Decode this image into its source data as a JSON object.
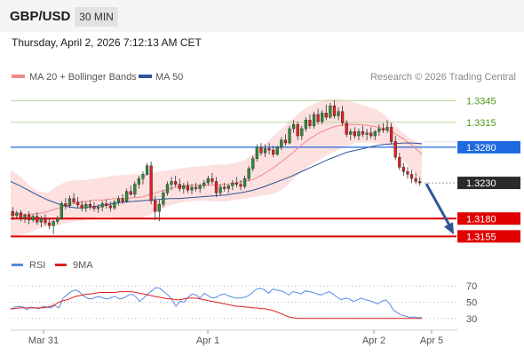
{
  "header": {
    "symbol": "GBP/USD",
    "interval": "30 MIN"
  },
  "datetime": "Thursday, April 2, 2026 7:12:13 AM CET",
  "legend": {
    "ma20": "MA 20 + Bollinger Bands",
    "ma50": "MA 50",
    "copyright": "Research © 2026 Trading Central"
  },
  "rsi_legend": {
    "rsi": "RSI",
    "ma9": "9MA"
  },
  "colors": {
    "ma20": "#f08a8a",
    "ma50": "#2f5597",
    "band": "#fde0e0",
    "bull": "#2e8b3a",
    "bear": "#e02020",
    "pivot": "#1f6ae0",
    "support": "#e00000",
    "target": "#7fbf3f",
    "arrow": "#2f5597",
    "rsi": "#5a8ae0",
    "rsi_ma": "#e02020"
  },
  "chart_data": {
    "type": "candlestick",
    "x_ticks": [
      "Mar 31",
      "Apr 1",
      "Apr 2",
      "Apr 5"
    ],
    "price_ylim": [
      1.3138,
      1.3362
    ],
    "levels": [
      {
        "label": "1.3345",
        "value": 1.3345,
        "kind": "target"
      },
      {
        "label": "1.3315",
        "value": 1.3315,
        "kind": "target"
      },
      {
        "label": "1.3280",
        "value": 1.328,
        "kind": "pivot"
      },
      {
        "label": "1.3230",
        "value": 1.323,
        "kind": "last"
      },
      {
        "label": "1.3180",
        "value": 1.318,
        "kind": "support"
      },
      {
        "label": "1.3155",
        "value": 1.3155,
        "kind": "support"
      }
    ],
    "last_price": 1.323,
    "arrow": {
      "from": 1.323,
      "to": 1.3155
    },
    "candles": [
      [
        1.319,
        1.3196,
        1.3178,
        1.3184
      ],
      [
        1.3184,
        1.3191,
        1.318,
        1.3188
      ],
      [
        1.3188,
        1.3192,
        1.3176,
        1.3181
      ],
      [
        1.3181,
        1.3187,
        1.3174,
        1.3185
      ],
      [
        1.3185,
        1.319,
        1.3172,
        1.3178
      ],
      [
        1.3178,
        1.3186,
        1.3175,
        1.3183
      ],
      [
        1.3183,
        1.3189,
        1.3171,
        1.3175
      ],
      [
        1.3175,
        1.3184,
        1.3168,
        1.318
      ],
      [
        1.318,
        1.3186,
        1.317,
        1.3174
      ],
      [
        1.3174,
        1.3181,
        1.3165,
        1.317
      ],
      [
        1.317,
        1.3178,
        1.3158,
        1.3176
      ],
      [
        1.3176,
        1.3184,
        1.3172,
        1.318
      ],
      [
        1.318,
        1.3204,
        1.3178,
        1.3201
      ],
      [
        1.3201,
        1.3209,
        1.3193,
        1.3198
      ],
      [
        1.3198,
        1.3212,
        1.3195,
        1.3208
      ],
      [
        1.3208,
        1.3216,
        1.32,
        1.3203
      ],
      [
        1.3203,
        1.321,
        1.3195,
        1.3199
      ],
      [
        1.3199,
        1.3205,
        1.319,
        1.3195
      ],
      [
        1.3195,
        1.3204,
        1.3189,
        1.32
      ],
      [
        1.32,
        1.3206,
        1.3192,
        1.3197
      ],
      [
        1.3197,
        1.3203,
        1.319,
        1.3194
      ],
      [
        1.3194,
        1.32,
        1.3188,
        1.3196
      ],
      [
        1.3196,
        1.3205,
        1.319,
        1.3201
      ],
      [
        1.3201,
        1.3207,
        1.3194,
        1.3198
      ],
      [
        1.3198,
        1.3204,
        1.319,
        1.3195
      ],
      [
        1.3195,
        1.3206,
        1.3192,
        1.3203
      ],
      [
        1.3203,
        1.3212,
        1.3198,
        1.3208
      ],
      [
        1.3208,
        1.3214,
        1.32,
        1.3204
      ],
      [
        1.3204,
        1.3222,
        1.3202,
        1.3218
      ],
      [
        1.3218,
        1.3226,
        1.3212,
        1.3214
      ],
      [
        1.3214,
        1.3232,
        1.321,
        1.3228
      ],
      [
        1.3228,
        1.324,
        1.3222,
        1.3236
      ],
      [
        1.3236,
        1.3246,
        1.3228,
        1.3242
      ],
      [
        1.3242,
        1.3258,
        1.324,
        1.3254
      ],
      [
        1.3254,
        1.326,
        1.32,
        1.3205
      ],
      [
        1.3205,
        1.3212,
        1.3178,
        1.319
      ],
      [
        1.319,
        1.3206,
        1.3176,
        1.32
      ],
      [
        1.32,
        1.322,
        1.3196,
        1.3216
      ],
      [
        1.3216,
        1.3232,
        1.3212,
        1.3228
      ],
      [
        1.3228,
        1.3238,
        1.322,
        1.3232
      ],
      [
        1.3232,
        1.324,
        1.3224,
        1.3228
      ],
      [
        1.3228,
        1.3236,
        1.3218,
        1.3222
      ],
      [
        1.3222,
        1.323,
        1.3215,
        1.3226
      ],
      [
        1.3226,
        1.3232,
        1.3216,
        1.322
      ],
      [
        1.322,
        1.3228,
        1.3214,
        1.3224
      ],
      [
        1.3224,
        1.323,
        1.3218,
        1.3222
      ],
      [
        1.3222,
        1.3229,
        1.3216,
        1.3226
      ],
      [
        1.3226,
        1.3234,
        1.3222,
        1.323
      ],
      [
        1.323,
        1.324,
        1.3226,
        1.3236
      ],
      [
        1.3236,
        1.3244,
        1.3228,
        1.3232
      ],
      [
        1.3232,
        1.3238,
        1.321,
        1.3216
      ],
      [
        1.3216,
        1.3228,
        1.3212,
        1.3224
      ],
      [
        1.3224,
        1.323,
        1.3218,
        1.3222
      ],
      [
        1.3222,
        1.3228,
        1.3216,
        1.3226
      ],
      [
        1.3226,
        1.3234,
        1.322,
        1.323
      ],
      [
        1.323,
        1.3238,
        1.3224,
        1.3228
      ],
      [
        1.3228,
        1.3234,
        1.322,
        1.3225
      ],
      [
        1.3225,
        1.324,
        1.3222,
        1.3236
      ],
      [
        1.3236,
        1.3254,
        1.3232,
        1.325
      ],
      [
        1.325,
        1.3268,
        1.3246,
        1.3264
      ],
      [
        1.3264,
        1.3284,
        1.326,
        1.328
      ],
      [
        1.328,
        1.3286,
        1.3268,
        1.3272
      ],
      [
        1.3272,
        1.3284,
        1.3266,
        1.3278
      ],
      [
        1.3278,
        1.3286,
        1.327,
        1.3276
      ],
      [
        1.3276,
        1.3282,
        1.3266,
        1.327
      ],
      [
        1.327,
        1.3282,
        1.3268,
        1.328
      ],
      [
        1.328,
        1.3294,
        1.3276,
        1.329
      ],
      [
        1.329,
        1.3298,
        1.3282,
        1.3286
      ],
      [
        1.3286,
        1.331,
        1.3284,
        1.3306
      ],
      [
        1.3306,
        1.3318,
        1.33,
        1.3312
      ],
      [
        1.3312,
        1.3316,
        1.329,
        1.3296
      ],
      [
        1.3296,
        1.331,
        1.329,
        1.3306
      ],
      [
        1.3306,
        1.3322,
        1.3302,
        1.3318
      ],
      [
        1.3318,
        1.3326,
        1.3306,
        1.331
      ],
      [
        1.331,
        1.333,
        1.3306,
        1.3326
      ],
      [
        1.3326,
        1.3334,
        1.3312,
        1.3316
      ],
      [
        1.3316,
        1.3332,
        1.3312,
        1.3328
      ],
      [
        1.3328,
        1.334,
        1.3318,
        1.3322
      ],
      [
        1.3322,
        1.3342,
        1.332,
        1.3338
      ],
      [
        1.3338,
        1.3346,
        1.332,
        1.3324
      ],
      [
        1.3324,
        1.3336,
        1.3318,
        1.333
      ],
      [
        1.333,
        1.3338,
        1.331,
        1.3314
      ],
      [
        1.3314,
        1.3318,
        1.3294,
        1.3298
      ],
      [
        1.3298,
        1.3306,
        1.329,
        1.3302
      ],
      [
        1.3302,
        1.3308,
        1.3292,
        1.3296
      ],
      [
        1.3296,
        1.3306,
        1.329,
        1.3302
      ],
      [
        1.3302,
        1.331,
        1.3294,
        1.3298
      ],
      [
        1.3298,
        1.3306,
        1.329,
        1.33
      ],
      [
        1.33,
        1.3308,
        1.3292,
        1.3296
      ],
      [
        1.3296,
        1.3304,
        1.329,
        1.3302
      ],
      [
        1.3302,
        1.3312,
        1.3296,
        1.3306
      ],
      [
        1.3306,
        1.3314,
        1.33,
        1.3304
      ],
      [
        1.3304,
        1.3318,
        1.33,
        1.3308
      ],
      [
        1.3308,
        1.3314,
        1.3284,
        1.3288
      ],
      [
        1.3288,
        1.3296,
        1.3262,
        1.3266
      ],
      [
        1.3266,
        1.3272,
        1.3248,
        1.3252
      ],
      [
        1.3252,
        1.3258,
        1.324,
        1.3246
      ],
      [
        1.3246,
        1.3252,
        1.3236,
        1.3242
      ],
      [
        1.3242,
        1.3248,
        1.323,
        1.3236
      ],
      [
        1.3236,
        1.3244,
        1.3228,
        1.3232
      ],
      [
        1.3232,
        1.3238,
        1.3226,
        1.323
      ]
    ],
    "ma20": [
      1.3186,
      1.3186,
      1.3186,
      1.3187,
      1.319,
      1.3194,
      1.3198,
      1.3202,
      1.3204,
      1.3206,
      1.3206,
      1.3208,
      1.3208,
      1.3209,
      1.321,
      1.3214,
      1.3218,
      1.3222,
      1.3225,
      1.3227,
      1.3227,
      1.3227,
      1.3227,
      1.3228,
      1.323,
      1.3232,
      1.3235,
      1.3242,
      1.325,
      1.326,
      1.327,
      1.3282,
      1.3292,
      1.33,
      1.3306,
      1.331,
      1.3312,
      1.3312,
      1.3311,
      1.3309,
      1.3306,
      1.33,
      1.3292,
      1.3282,
      1.327
    ],
    "ma50": [
      1.3232,
      1.3226,
      1.3219,
      1.3212,
      1.3206,
      1.3201,
      1.3197,
      1.3195,
      1.3195,
      1.3197,
      1.3199,
      1.3201,
      1.3203,
      1.3204,
      1.3205,
      1.3206,
      1.3207,
      1.3208,
      1.3208,
      1.3209,
      1.321,
      1.3211,
      1.3212,
      1.3213,
      1.3215,
      1.3217,
      1.322,
      1.3224,
      1.3229,
      1.3234,
      1.3239,
      1.3245,
      1.3251,
      1.3257,
      1.3263,
      1.3268,
      1.3273,
      1.3276,
      1.3279,
      1.3282,
      1.3284,
      1.3285,
      1.3286,
      1.3286,
      1.3285
    ],
    "band_upper": [
      1.3248,
      1.324,
      1.3226,
      1.3218,
      1.3216,
      1.3226,
      1.3232,
      1.3234,
      1.3234,
      1.3236,
      1.3238,
      1.324,
      1.3241,
      1.3242,
      1.3242,
      1.3244,
      1.3246,
      1.3248,
      1.325,
      1.3252,
      1.3253,
      1.3254,
      1.3256,
      1.3256,
      1.3258,
      1.3262,
      1.327,
      1.3282,
      1.3294,
      1.3306,
      1.3318,
      1.333,
      1.3338,
      1.3344,
      1.3348,
      1.3348,
      1.3346,
      1.3342,
      1.3338,
      1.3334,
      1.3326,
      1.3312,
      1.33,
      1.329,
      1.3285
    ],
    "band_lower": [
      1.3154,
      1.3156,
      1.316,
      1.3166,
      1.317,
      1.317,
      1.3174,
      1.3176,
      1.3178,
      1.3182,
      1.3182,
      1.3182,
      1.318,
      1.318,
      1.318,
      1.3186,
      1.3192,
      1.3198,
      1.3202,
      1.3204,
      1.3205,
      1.3205,
      1.3204,
      1.3204,
      1.3206,
      1.3208,
      1.321,
      1.3212,
      1.3214,
      1.322,
      1.3232,
      1.3244,
      1.3254,
      1.3262,
      1.327,
      1.3276,
      1.3282,
      1.3286,
      1.3287,
      1.3286,
      1.3284,
      1.3278,
      1.3262,
      1.3246,
      1.3232
    ],
    "rsi_ticks": [
      "70",
      "50",
      "30"
    ],
    "rsi_ylim": [
      20,
      80
    ],
    "rsi": [
      41,
      44,
      45,
      44,
      41,
      44,
      43,
      42,
      45,
      44,
      43,
      46,
      43,
      55,
      59,
      63,
      65,
      63,
      58,
      55,
      54,
      56,
      57,
      55,
      54,
      56,
      57,
      54,
      55,
      58,
      60,
      57,
      51,
      55,
      60,
      64,
      68,
      67,
      63,
      59,
      53,
      45,
      51,
      50,
      56,
      60,
      59,
      55,
      61,
      58,
      55,
      56,
      59,
      60,
      58,
      56,
      55,
      55,
      56,
      58,
      62,
      66,
      67,
      65,
      61,
      66,
      65,
      64,
      62,
      59,
      63,
      62,
      60,
      64,
      63,
      62,
      60,
      59,
      61,
      63,
      60,
      56,
      53,
      55,
      54,
      51,
      53,
      55,
      53,
      52,
      50,
      48,
      51,
      53,
      48,
      40,
      37,
      34,
      33,
      31,
      32,
      31,
      31
    ],
    "rsi_ma9": [
      42,
      42,
      43,
      43,
      43,
      43,
      43,
      43,
      43,
      44,
      45,
      47,
      50,
      52,
      53,
      55,
      57,
      58,
      59,
      60,
      60,
      61,
      62,
      62,
      62,
      62,
      62,
      63,
      63,
      63,
      63,
      62,
      61,
      60,
      59,
      58,
      57,
      56,
      55,
      54,
      54,
      53,
      53,
      54,
      55,
      55,
      55,
      54,
      53,
      52,
      51,
      50,
      49,
      48,
      47,
      46,
      45,
      45,
      44,
      44,
      43,
      43,
      42,
      42,
      41,
      40,
      38,
      36,
      34,
      32,
      31,
      30,
      30,
      30,
      30,
      30,
      30,
      30,
      30,
      30,
      30,
      30,
      30,
      30,
      30,
      30,
      30,
      30,
      30,
      30,
      30,
      30,
      30,
      30,
      30,
      30,
      30,
      30,
      30,
      30,
      30,
      30,
      30
    ]
  }
}
